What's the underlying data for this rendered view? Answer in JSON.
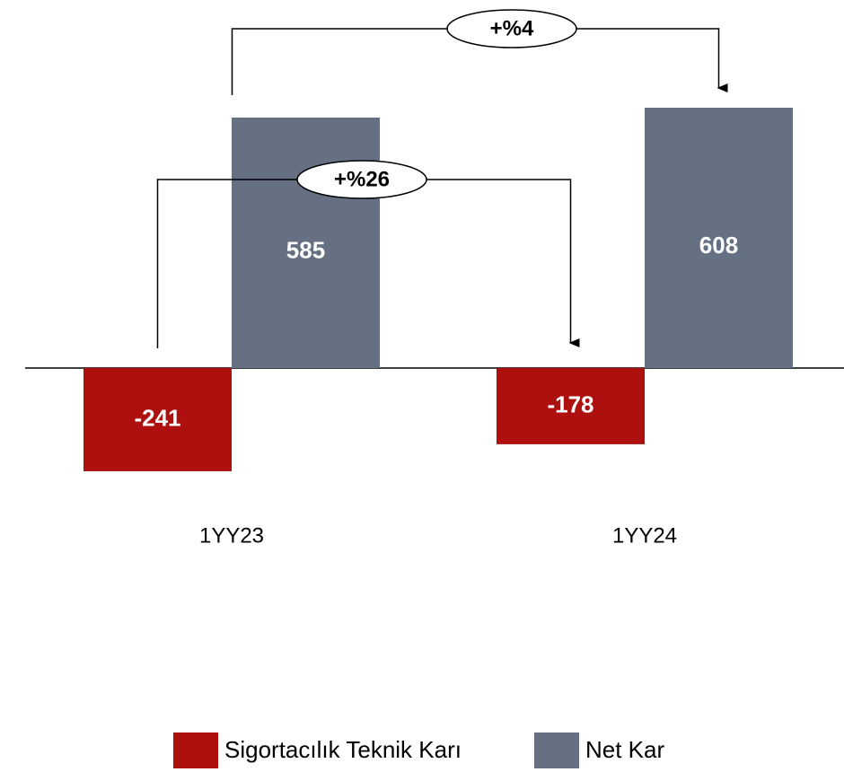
{
  "chart_data": {
    "type": "bar",
    "categories": [
      "1YY23",
      "1YY24"
    ],
    "series": [
      {
        "name": "Sigortacılık Teknik Karı",
        "color": "#ae1010",
        "values": [
          -241,
          -178
        ]
      },
      {
        "name": "Net Kar",
        "color": "#657182",
        "values": [
          585,
          608
        ]
      }
    ],
    "annotations": [
      "+%4",
      "+%26"
    ],
    "legend": "bottom"
  }
}
